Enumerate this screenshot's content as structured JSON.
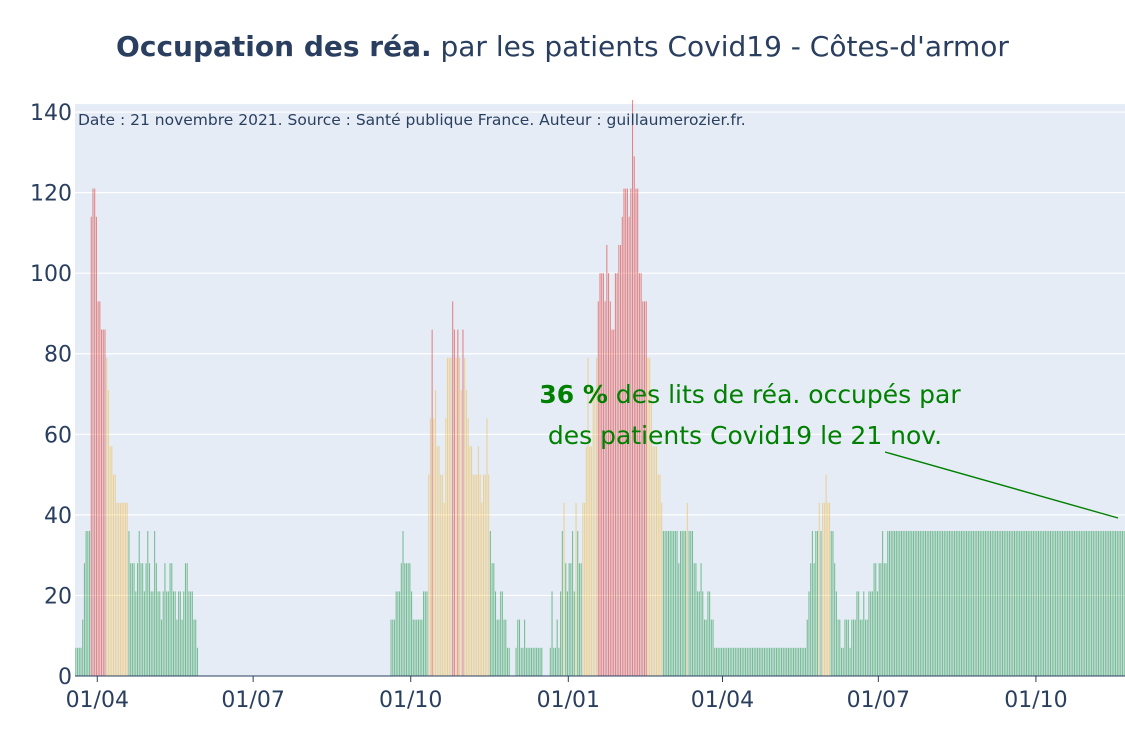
{
  "title": {
    "bold": "Occupation des réa.",
    "rest": " par les patients Covid19 - Côtes-d'armor"
  },
  "source_note": "Date : 21 novembre 2021. Source : Santé publique France. Auteur : guillaumerozier.fr.",
  "annotation": {
    "percent": "36  %",
    "line1_rest": " des lits de réa. occupés par",
    "line2": "des patients Covid19 le 21 nov."
  },
  "colors": {
    "green": "#1a9641",
    "yellow": "#f0b944",
    "red": "#de2d26",
    "plot_bg": "#e5ecf6",
    "annotation": "#008000",
    "text": "#2a3f5f"
  },
  "chart_data": {
    "type": "bar",
    "ylim": [
      0,
      142
    ],
    "grid": true,
    "yticks": [
      0,
      20,
      40,
      60,
      80,
      100,
      120,
      140
    ],
    "xticks": [
      {
        "date": "2020-04-01",
        "label": "01/04"
      },
      {
        "date": "2020-07-01",
        "label": "01/07"
      },
      {
        "date": "2020-10-01",
        "label": "01/10"
      },
      {
        "date": "2021-01-01",
        "label": "01/01"
      },
      {
        "date": "2021-04-01",
        "label": "01/04"
      },
      {
        "date": "2021-07-01",
        "label": "01/07"
      },
      {
        "date": "2021-10-01",
        "label": "01/10"
      }
    ],
    "xrange": [
      "2020-03-19",
      "2021-11-22"
    ],
    "color_rule": {
      "unit": "% des lits de réa.",
      "yellow_above": 40,
      "red_above": 60
    },
    "segments": [
      [
        "2020-03-19",
        7
      ],
      [
        "2020-03-23",
        14
      ],
      [
        "2020-03-24",
        28
      ],
      [
        "2020-03-25",
        36
      ],
      [
        "2020-03-28",
        114
      ],
      [
        "2020-03-29",
        121
      ],
      [
        "2020-03-31",
        114
      ],
      [
        "2020-04-01",
        93
      ],
      [
        "2020-04-03",
        86
      ],
      [
        "2020-04-06",
        79
      ],
      [
        "2020-04-07",
        71
      ],
      [
        "2020-04-08",
        57
      ],
      [
        "2020-04-10",
        50
      ],
      [
        "2020-04-12",
        43
      ],
      [
        "2020-04-19",
        36
      ],
      [
        "2020-04-20",
        28
      ],
      [
        "2020-04-23",
        21
      ],
      [
        "2020-04-24",
        28
      ],
      [
        "2020-04-25",
        36
      ],
      [
        "2020-04-26",
        28
      ],
      [
        "2020-04-28",
        21
      ],
      [
        "2020-04-29",
        28
      ],
      [
        "2020-04-30",
        36
      ],
      [
        "2020-05-01",
        28
      ],
      [
        "2020-05-02",
        21
      ],
      [
        "2020-05-04",
        36
      ],
      [
        "2020-05-05",
        28
      ],
      [
        "2020-05-06",
        21
      ],
      [
        "2020-05-08",
        14
      ],
      [
        "2020-05-09",
        21
      ],
      [
        "2020-05-10",
        28
      ],
      [
        "2020-05-11",
        21
      ],
      [
        "2020-05-13",
        28
      ],
      [
        "2020-05-15",
        21
      ],
      [
        "2020-05-17",
        14
      ],
      [
        "2020-05-18",
        21
      ],
      [
        "2020-05-20",
        14
      ],
      [
        "2020-05-21",
        21
      ],
      [
        "2020-05-22",
        28
      ],
      [
        "2020-05-24",
        21
      ],
      [
        "2020-05-27",
        14
      ],
      [
        "2020-05-29",
        7
      ],
      [
        "2020-05-30",
        0
      ],
      [
        "2020-09-19",
        14
      ],
      [
        "2020-09-22",
        21
      ],
      [
        "2020-09-25",
        28
      ],
      [
        "2020-09-26",
        36
      ],
      [
        "2020-09-27",
        28
      ],
      [
        "2020-10-01",
        21
      ],
      [
        "2020-10-02",
        14
      ],
      [
        "2020-10-08",
        21
      ],
      [
        "2020-10-11",
        50
      ],
      [
        "2020-10-12",
        64
      ],
      [
        "2020-10-13",
        86
      ],
      [
        "2020-10-14",
        64
      ],
      [
        "2020-10-15",
        71
      ],
      [
        "2020-10-16",
        57
      ],
      [
        "2020-10-18",
        50
      ],
      [
        "2020-10-20",
        43
      ],
      [
        "2020-10-21",
        64
      ],
      [
        "2020-10-22",
        79
      ],
      [
        "2020-10-25",
        93
      ],
      [
        "2020-10-26",
        86
      ],
      [
        "2020-10-27",
        79
      ],
      [
        "2020-10-28",
        86
      ],
      [
        "2020-10-29",
        79
      ],
      [
        "2020-10-30",
        71
      ],
      [
        "2020-10-31",
        86
      ],
      [
        "2020-11-01",
        79
      ],
      [
        "2020-11-02",
        71
      ],
      [
        "2020-11-03",
        64
      ],
      [
        "2020-11-04",
        57
      ],
      [
        "2020-11-06",
        50
      ],
      [
        "2020-11-09",
        57
      ],
      [
        "2020-11-10",
        50
      ],
      [
        "2020-11-11",
        43
      ],
      [
        "2020-11-12",
        50
      ],
      [
        "2020-11-14",
        64
      ],
      [
        "2020-11-15",
        50
      ],
      [
        "2020-11-16",
        36
      ],
      [
        "2020-11-17",
        28
      ],
      [
        "2020-11-19",
        21
      ],
      [
        "2020-11-20",
        14
      ],
      [
        "2020-11-22",
        21
      ],
      [
        "2020-11-24",
        14
      ],
      [
        "2020-11-26",
        7
      ],
      [
        "2020-11-28",
        0
      ],
      [
        "2020-12-01",
        7
      ],
      [
        "2020-12-02",
        14
      ],
      [
        "2020-12-04",
        7
      ],
      [
        "2020-12-06",
        14
      ],
      [
        "2020-12-07",
        7
      ],
      [
        "2020-12-17",
        0
      ],
      [
        "2020-12-21",
        7
      ],
      [
        "2020-12-22",
        21
      ],
      [
        "2020-12-23",
        7
      ],
      [
        "2020-12-25",
        14
      ],
      [
        "2020-12-26",
        7
      ],
      [
        "2020-12-27",
        21
      ],
      [
        "2020-12-28",
        36
      ],
      [
        "2020-12-29",
        43
      ],
      [
        "2020-12-30",
        28
      ],
      [
        "2020-12-31",
        21
      ],
      [
        "2021-01-01",
        28
      ],
      [
        "2021-01-03",
        36
      ],
      [
        "2021-01-04",
        21
      ],
      [
        "2021-01-05",
        43
      ],
      [
        "2021-01-06",
        36
      ],
      [
        "2021-01-07",
        28
      ],
      [
        "2021-01-09",
        43
      ],
      [
        "2021-01-11",
        57
      ],
      [
        "2021-01-12",
        79
      ],
      [
        "2021-01-13",
        57
      ],
      [
        "2021-01-15",
        71
      ],
      [
        "2021-01-17",
        79
      ],
      [
        "2021-01-18",
        93
      ],
      [
        "2021-01-19",
        100
      ],
      [
        "2021-01-22",
        93
      ],
      [
        "2021-01-23",
        107
      ],
      [
        "2021-01-24",
        100
      ],
      [
        "2021-01-25",
        93
      ],
      [
        "2021-01-26",
        86
      ],
      [
        "2021-01-28",
        100
      ],
      [
        "2021-01-30",
        107
      ],
      [
        "2021-02-01",
        114
      ],
      [
        "2021-02-02",
        121
      ],
      [
        "2021-02-05",
        114
      ],
      [
        "2021-02-06",
        121
      ],
      [
        "2021-02-07",
        143
      ],
      [
        "2021-02-08",
        129
      ],
      [
        "2021-02-09",
        121
      ],
      [
        "2021-02-11",
        100
      ],
      [
        "2021-02-13",
        93
      ],
      [
        "2021-02-16",
        79
      ],
      [
        "2021-02-18",
        71
      ],
      [
        "2021-02-19",
        57
      ],
      [
        "2021-02-22",
        50
      ],
      [
        "2021-02-24",
        43
      ],
      [
        "2021-02-25",
        36
      ],
      [
        "2021-03-06",
        28
      ],
      [
        "2021-03-07",
        36
      ],
      [
        "2021-03-11",
        43
      ],
      [
        "2021-03-12",
        36
      ],
      [
        "2021-03-15",
        28
      ],
      [
        "2021-03-17",
        21
      ],
      [
        "2021-03-19",
        28
      ],
      [
        "2021-03-20",
        21
      ],
      [
        "2021-03-21",
        14
      ],
      [
        "2021-03-23",
        21
      ],
      [
        "2021-03-25",
        14
      ],
      [
        "2021-03-27",
        7
      ],
      [
        "2021-05-20",
        14
      ],
      [
        "2021-05-21",
        21
      ],
      [
        "2021-05-22",
        28
      ],
      [
        "2021-05-23",
        36
      ],
      [
        "2021-05-24",
        28
      ],
      [
        "2021-05-25",
        36
      ],
      [
        "2021-05-27",
        43
      ],
      [
        "2021-05-28",
        36
      ],
      [
        "2021-05-29",
        43
      ],
      [
        "2021-05-31",
        50
      ],
      [
        "2021-06-01",
        43
      ],
      [
        "2021-06-03",
        36
      ],
      [
        "2021-06-05",
        28
      ],
      [
        "2021-06-06",
        21
      ],
      [
        "2021-06-07",
        14
      ],
      [
        "2021-06-09",
        7
      ],
      [
        "2021-06-11",
        14
      ],
      [
        "2021-06-13",
        14
      ],
      [
        "2021-06-14",
        7
      ],
      [
        "2021-06-15",
        14
      ],
      [
        "2021-06-17",
        14
      ],
      [
        "2021-06-18",
        21
      ],
      [
        "2021-06-20",
        14
      ],
      [
        "2021-06-22",
        21
      ],
      [
        "2021-06-23",
        14
      ],
      [
        "2021-06-25",
        21
      ],
      [
        "2021-06-27",
        21
      ],
      [
        "2021-06-28",
        28
      ],
      [
        "2021-06-30",
        21
      ],
      [
        "2021-07-01",
        28
      ],
      [
        "2021-07-03",
        36
      ],
      [
        "2021-07-04",
        28
      ],
      [
        "2021-07-06",
        36
      ]
    ]
  }
}
